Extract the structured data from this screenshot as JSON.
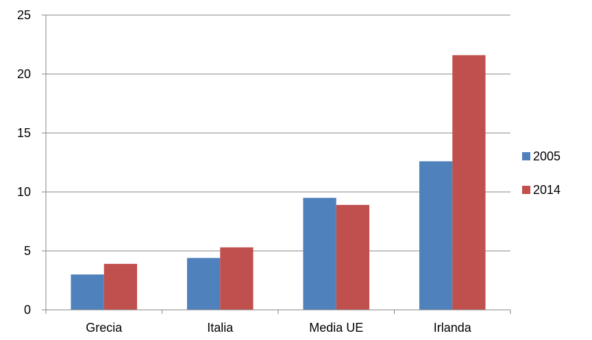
{
  "chart_data": {
    "type": "bar",
    "title": "",
    "xlabel": "",
    "ylabel": "",
    "categories": [
      "Grecia",
      "Italia",
      "Media UE",
      "Irlanda"
    ],
    "series": [
      {
        "name": "2005",
        "color": "#4F81BD",
        "values": [
          3.0,
          4.4,
          9.5,
          12.6
        ]
      },
      {
        "name": "2014",
        "color": "#C0504D",
        "values": [
          3.9,
          5.3,
          8.9,
          21.6
        ]
      }
    ],
    "ylim": [
      0,
      25
    ],
    "yticks": [
      "0",
      "5",
      "10",
      "15",
      "20",
      "25"
    ],
    "grid": true,
    "legend": "right"
  }
}
